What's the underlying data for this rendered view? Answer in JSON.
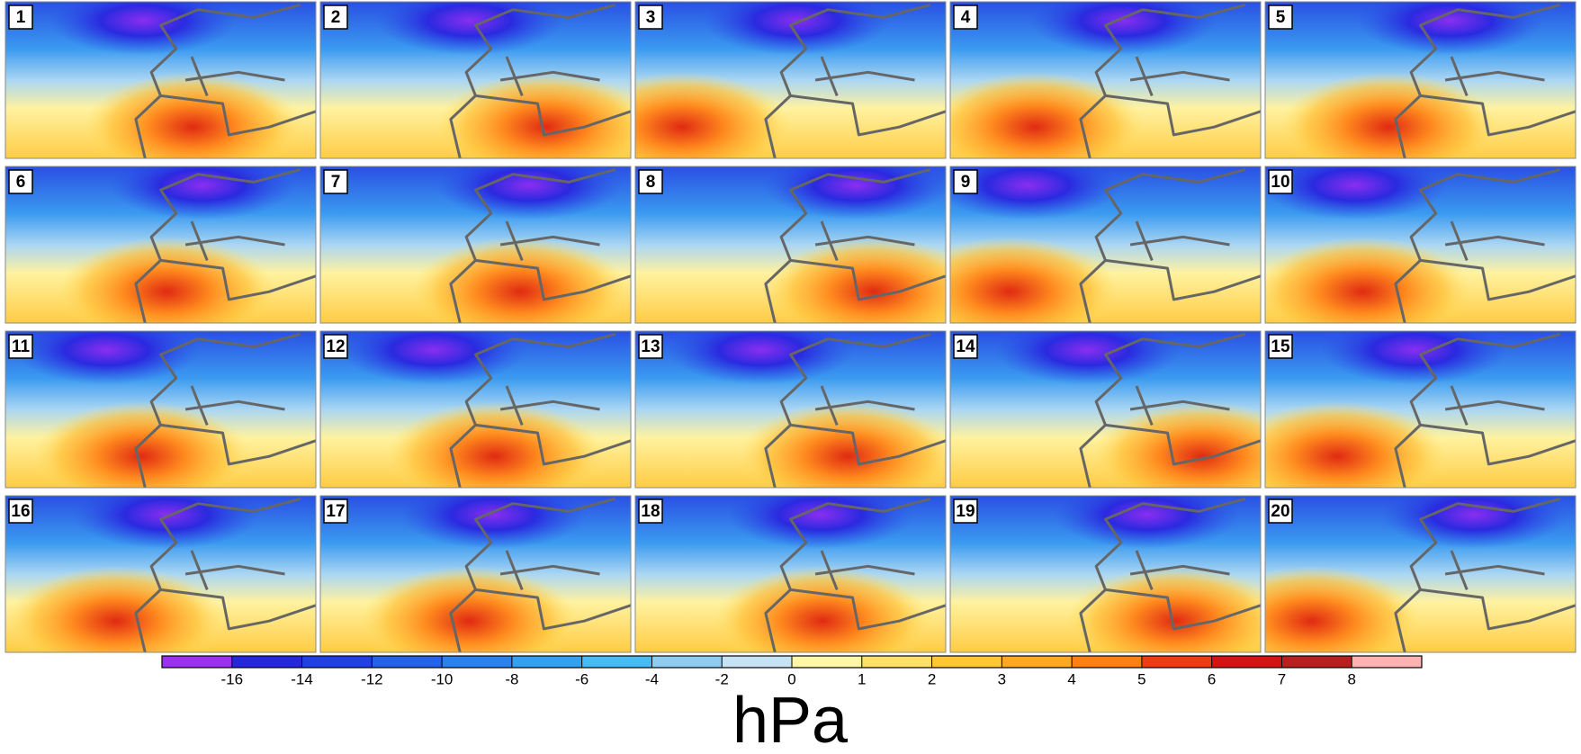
{
  "panels": [
    {
      "label": "1"
    },
    {
      "label": "2"
    },
    {
      "label": "3"
    },
    {
      "label": "4"
    },
    {
      "label": "5"
    },
    {
      "label": "6"
    },
    {
      "label": "7"
    },
    {
      "label": "8"
    },
    {
      "label": "9"
    },
    {
      "label": "10"
    },
    {
      "label": "11"
    },
    {
      "label": "12"
    },
    {
      "label": "13"
    },
    {
      "label": "14"
    },
    {
      "label": "15"
    },
    {
      "label": "16"
    },
    {
      "label": "17"
    },
    {
      "label": "18"
    },
    {
      "label": "19"
    },
    {
      "label": "20"
    }
  ],
  "colorbar": {
    "unit": "hPa",
    "ticks": [
      -16,
      -14,
      -12,
      -10,
      -8,
      -6,
      -4,
      -2,
      0,
      1,
      2,
      3,
      4,
      5,
      6,
      7,
      8
    ],
    "colors": [
      "#9b30f0",
      "#2626e0",
      "#1f40e6",
      "#2462ea",
      "#2a82ee",
      "#34a0f2",
      "#46bcf5",
      "#8fcdf0",
      "#c6e3f5",
      "#fff6a6",
      "#ffe066",
      "#ffc832",
      "#ffa820",
      "#ff8012",
      "#f03a12",
      "#d81212",
      "#b82020",
      "#ffb2b2"
    ]
  }
}
